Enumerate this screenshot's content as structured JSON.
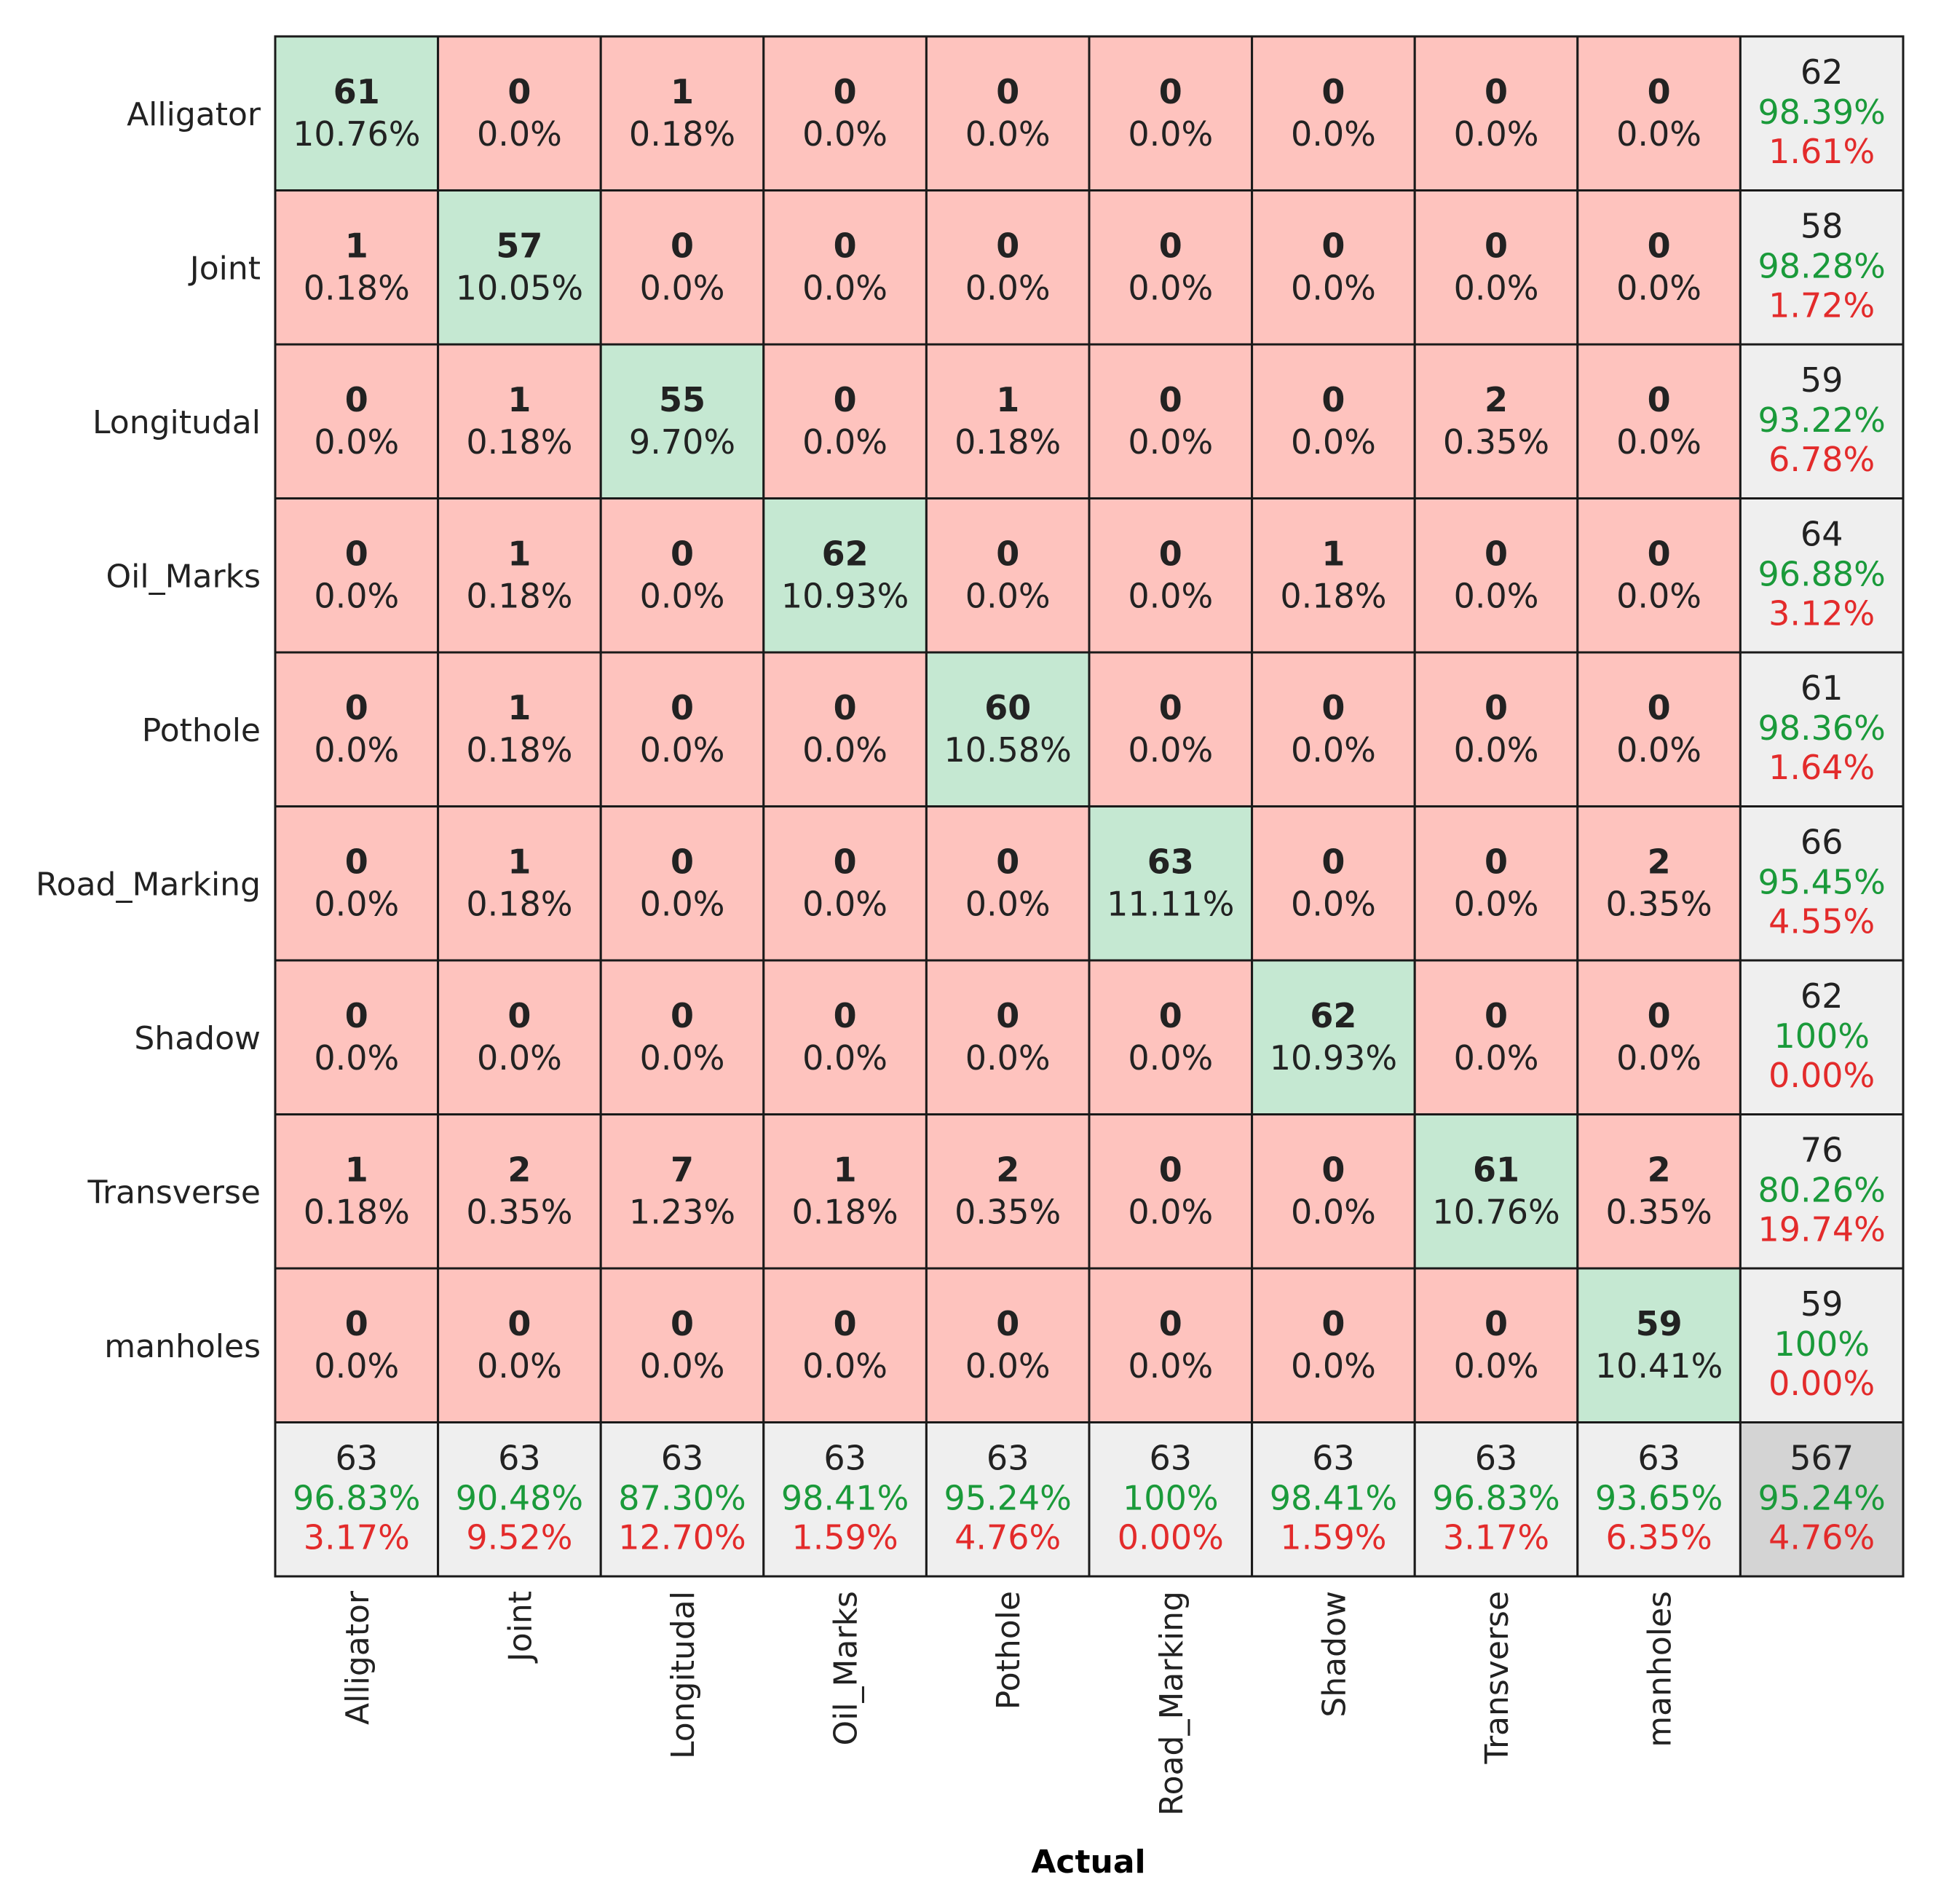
{
  "chart_data": {
    "type": "heatmap",
    "title": "",
    "xlabel": "Actual",
    "ylabel": "",
    "rows": [
      "Alligator",
      "Joint",
      "Longitudal",
      "Oil_Marks",
      "Pothole",
      "Road_Marking",
      "Shadow",
      "Transverse",
      "manholes"
    ],
    "columns": [
      "Alligator",
      "Joint",
      "Longitudal",
      "Oil_Marks",
      "Pothole",
      "Road_Marking",
      "Shadow",
      "Transverse",
      "manholes"
    ],
    "counts": [
      [
        61,
        0,
        1,
        0,
        0,
        0,
        0,
        0,
        0
      ],
      [
        1,
        57,
        0,
        0,
        0,
        0,
        0,
        0,
        0
      ],
      [
        0,
        1,
        55,
        0,
        1,
        0,
        0,
        2,
        0
      ],
      [
        0,
        1,
        0,
        62,
        0,
        0,
        1,
        0,
        0
      ],
      [
        0,
        1,
        0,
        0,
        60,
        0,
        0,
        0,
        0
      ],
      [
        0,
        1,
        0,
        0,
        0,
        63,
        0,
        0,
        2
      ],
      [
        0,
        0,
        0,
        0,
        0,
        0,
        62,
        0,
        0
      ],
      [
        1,
        2,
        7,
        1,
        2,
        0,
        0,
        61,
        2
      ],
      [
        0,
        0,
        0,
        0,
        0,
        0,
        0,
        0,
        59
      ]
    ],
    "percents": [
      [
        "10.76%",
        "0.0%",
        "0.18%",
        "0.0%",
        "0.0%",
        "0.0%",
        "0.0%",
        "0.0%",
        "0.0%"
      ],
      [
        "0.18%",
        "10.05%",
        "0.0%",
        "0.0%",
        "0.0%",
        "0.0%",
        "0.0%",
        "0.0%",
        "0.0%"
      ],
      [
        "0.0%",
        "0.18%",
        "9.70%",
        "0.0%",
        "0.18%",
        "0.0%",
        "0.0%",
        "0.35%",
        "0.0%"
      ],
      [
        "0.0%",
        "0.18%",
        "0.0%",
        "10.93%",
        "0.0%",
        "0.0%",
        "0.18%",
        "0.0%",
        "0.0%"
      ],
      [
        "0.0%",
        "0.18%",
        "0.0%",
        "0.0%",
        "10.58%",
        "0.0%",
        "0.0%",
        "0.0%",
        "0.0%"
      ],
      [
        "0.0%",
        "0.18%",
        "0.0%",
        "0.0%",
        "0.0%",
        "11.11%",
        "0.0%",
        "0.0%",
        "0.35%"
      ],
      [
        "0.0%",
        "0.0%",
        "0.0%",
        "0.0%",
        "0.0%",
        "0.0%",
        "10.93%",
        "0.0%",
        "0.0%"
      ],
      [
        "0.18%",
        "0.35%",
        "1.23%",
        "0.18%",
        "0.35%",
        "0.0%",
        "0.0%",
        "10.76%",
        "0.35%"
      ],
      [
        "0.0%",
        "0.0%",
        "0.0%",
        "0.0%",
        "0.0%",
        "0.0%",
        "0.0%",
        "0.0%",
        "10.41%"
      ]
    ],
    "row_summary": [
      {
        "total": "62",
        "correct": "98.39%",
        "error": "1.61%"
      },
      {
        "total": "58",
        "correct": "98.28%",
        "error": "1.72%"
      },
      {
        "total": "59",
        "correct": "93.22%",
        "error": "6.78%"
      },
      {
        "total": "64",
        "correct": "96.88%",
        "error": "3.12%"
      },
      {
        "total": "61",
        "correct": "98.36%",
        "error": "1.64%"
      },
      {
        "total": "66",
        "correct": "95.45%",
        "error": "4.55%"
      },
      {
        "total": "62",
        "correct": "100%",
        "error": "0.00%"
      },
      {
        "total": "76",
        "correct": "80.26%",
        "error": "19.74%"
      },
      {
        "total": "59",
        "correct": "100%",
        "error": "0.00%"
      }
    ],
    "column_summary": [
      {
        "total": "63",
        "correct": "96.83%",
        "error": "3.17%"
      },
      {
        "total": "63",
        "correct": "90.48%",
        "error": "9.52%"
      },
      {
        "total": "63",
        "correct": "87.30%",
        "error": "12.70%"
      },
      {
        "total": "63",
        "correct": "98.41%",
        "error": "1.59%"
      },
      {
        "total": "63",
        "correct": "95.24%",
        "error": "4.76%"
      },
      {
        "total": "63",
        "correct": "100%",
        "error": "0.00%"
      },
      {
        "total": "63",
        "correct": "98.41%",
        "error": "1.59%"
      },
      {
        "total": "63",
        "correct": "96.83%",
        "error": "3.17%"
      },
      {
        "total": "63",
        "correct": "93.65%",
        "error": "6.35%"
      }
    ],
    "overall": {
      "total": "567",
      "correct": "95.24%",
      "error": "4.76%"
    }
  },
  "colors": {
    "diagonal": "#c5e8d2",
    "off_diagonal": "#fec3be",
    "summary": "#efefef",
    "overall": "#d4d4d4",
    "correct_text": "#1a9a3a",
    "error_text": "#e32b2b",
    "text": "#222222",
    "grid": "#1a1a1a"
  }
}
